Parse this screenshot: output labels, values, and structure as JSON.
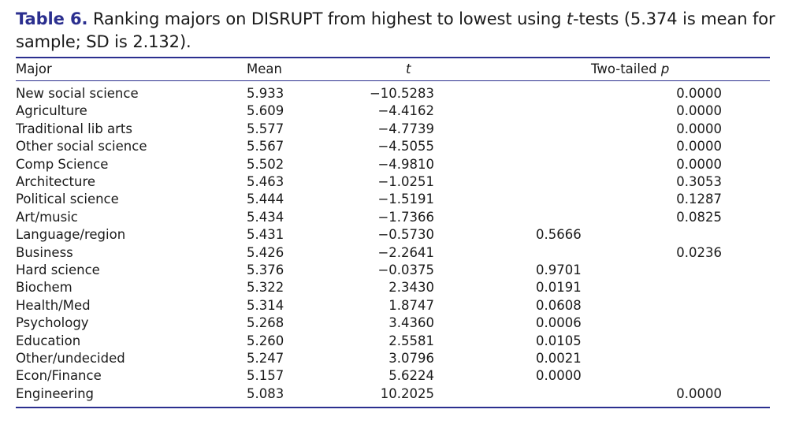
{
  "caption": {
    "label": "Table 6.",
    "text_before": "Ranking majors on DISRUPT from highest to lowest using ",
    "t_italic": "t",
    "text_after": "-tests (5.374 is mean for sample; SD is 2.132)."
  },
  "headers": {
    "major": "Major",
    "mean": "Mean",
    "t": "t",
    "p_label": "Two-tailed ",
    "p_italic": "p"
  },
  "rows": [
    {
      "major": "New social science",
      "mean": "5.933",
      "t": "−10.5283",
      "p1": "",
      "p2": "0.0000"
    },
    {
      "major": "Agriculture",
      "mean": "5.609",
      "t": "−4.4162",
      "p1": "",
      "p2": "0.0000"
    },
    {
      "major": "Traditional lib arts",
      "mean": "5.577",
      "t": "−4.7739",
      "p1": "",
      "p2": "0.0000"
    },
    {
      "major": "Other social science",
      "mean": "5.567",
      "t": "−4.5055",
      "p1": "",
      "p2": "0.0000"
    },
    {
      "major": "Comp Science",
      "mean": "5.502",
      "t": "−4.9810",
      "p1": "",
      "p2": "0.0000"
    },
    {
      "major": "Architecture",
      "mean": "5.463",
      "t": "−1.0251",
      "p1": "",
      "p2": "0.3053"
    },
    {
      "major": "Political science",
      "mean": "5.444",
      "t": "−1.5191",
      "p1": "",
      "p2": "0.1287"
    },
    {
      "major": "Art/music",
      "mean": "5.434",
      "t": "−1.7366",
      "p1": "",
      "p2": "0.0825"
    },
    {
      "major": "Language/region",
      "mean": "5.431",
      "t": "−0.5730",
      "p1": "0.5666",
      "p2": ""
    },
    {
      "major": "Business",
      "mean": "5.426",
      "t": "−2.2641",
      "p1": "",
      "p2": "0.0236"
    },
    {
      "major": "Hard science",
      "mean": "5.376",
      "t": "−0.0375",
      "p1": "0.9701",
      "p2": ""
    },
    {
      "major": "Biochem",
      "mean": "5.322",
      "t": "2.3430",
      "p1": "0.0191",
      "p2": ""
    },
    {
      "major": "Health/Med",
      "mean": "5.314",
      "t": "1.8747",
      "p1": "0.0608",
      "p2": ""
    },
    {
      "major": "Psychology",
      "mean": "5.268",
      "t": "3.4360",
      "p1": "0.0006",
      "p2": ""
    },
    {
      "major": "Education",
      "mean": "5.260",
      "t": "2.5581",
      "p1": "0.0105",
      "p2": ""
    },
    {
      "major": "Other/undecided",
      "mean": "5.247",
      "t": "3.0796",
      "p1": "0.0021",
      "p2": ""
    },
    {
      "major": "Econ/Finance",
      "mean": "5.157",
      "t": "5.6224",
      "p1": "0.0000",
      "p2": ""
    },
    {
      "major": "Engineering",
      "mean": "5.083",
      "t": "10.2025",
      "p1": "",
      "p2": "0.0000"
    }
  ]
}
